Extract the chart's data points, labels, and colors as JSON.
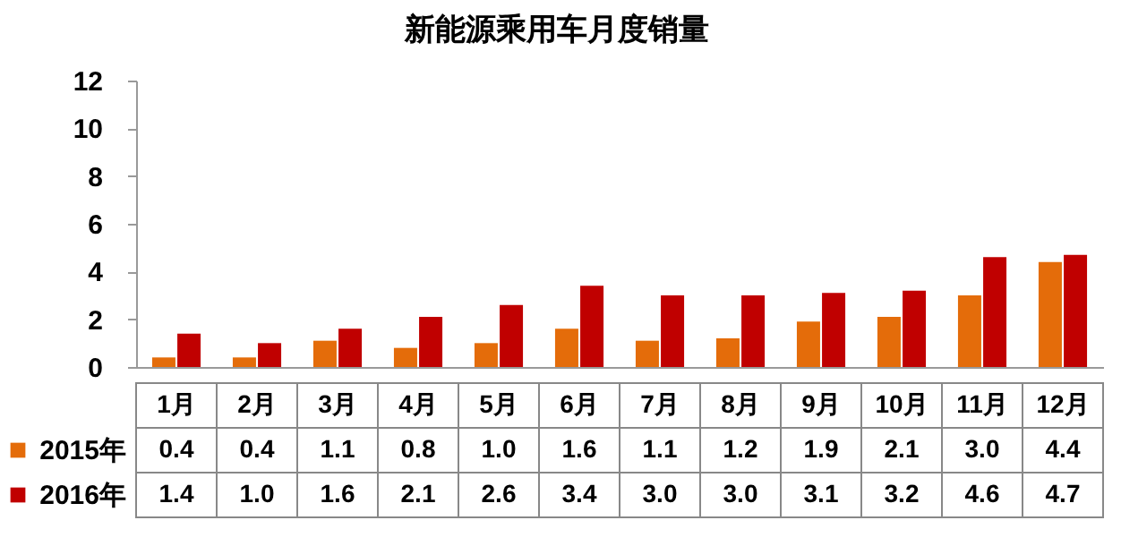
{
  "chart_data": {
    "type": "bar",
    "title": "新能源乘用车月度销量",
    "categories": [
      "1月",
      "2月",
      "3月",
      "4月",
      "5月",
      "6月",
      "7月",
      "8月",
      "9月",
      "10月",
      "11月",
      "12月"
    ],
    "series": [
      {
        "name": "2015年",
        "color": "#e46c0a",
        "values": [
          0.4,
          0.4,
          1.1,
          0.8,
          1.0,
          1.6,
          1.1,
          1.2,
          1.9,
          2.1,
          3.0,
          4.4
        ],
        "value_labels": [
          "0.4",
          "0.4",
          "1.1",
          "0.8",
          "1.0",
          "1.6",
          "1.1",
          "1.2",
          "1.9",
          "2.1",
          "3.0",
          "4.4"
        ]
      },
      {
        "name": "2016年",
        "color": "#c00000",
        "values": [
          1.4,
          1.0,
          1.6,
          2.1,
          2.6,
          3.4,
          3.0,
          3.0,
          3.1,
          3.2,
          4.6,
          4.7
        ],
        "value_labels": [
          "1.4",
          "1.0",
          "1.6",
          "2.1",
          "2.6",
          "3.4",
          "3.0",
          "3.0",
          "3.1",
          "3.2",
          "4.6",
          "4.7"
        ]
      }
    ],
    "ylim": [
      0,
      12
    ],
    "yticks": [
      0,
      2,
      4,
      6,
      8,
      10,
      12
    ],
    "grid": false,
    "legend": "bottom left"
  }
}
